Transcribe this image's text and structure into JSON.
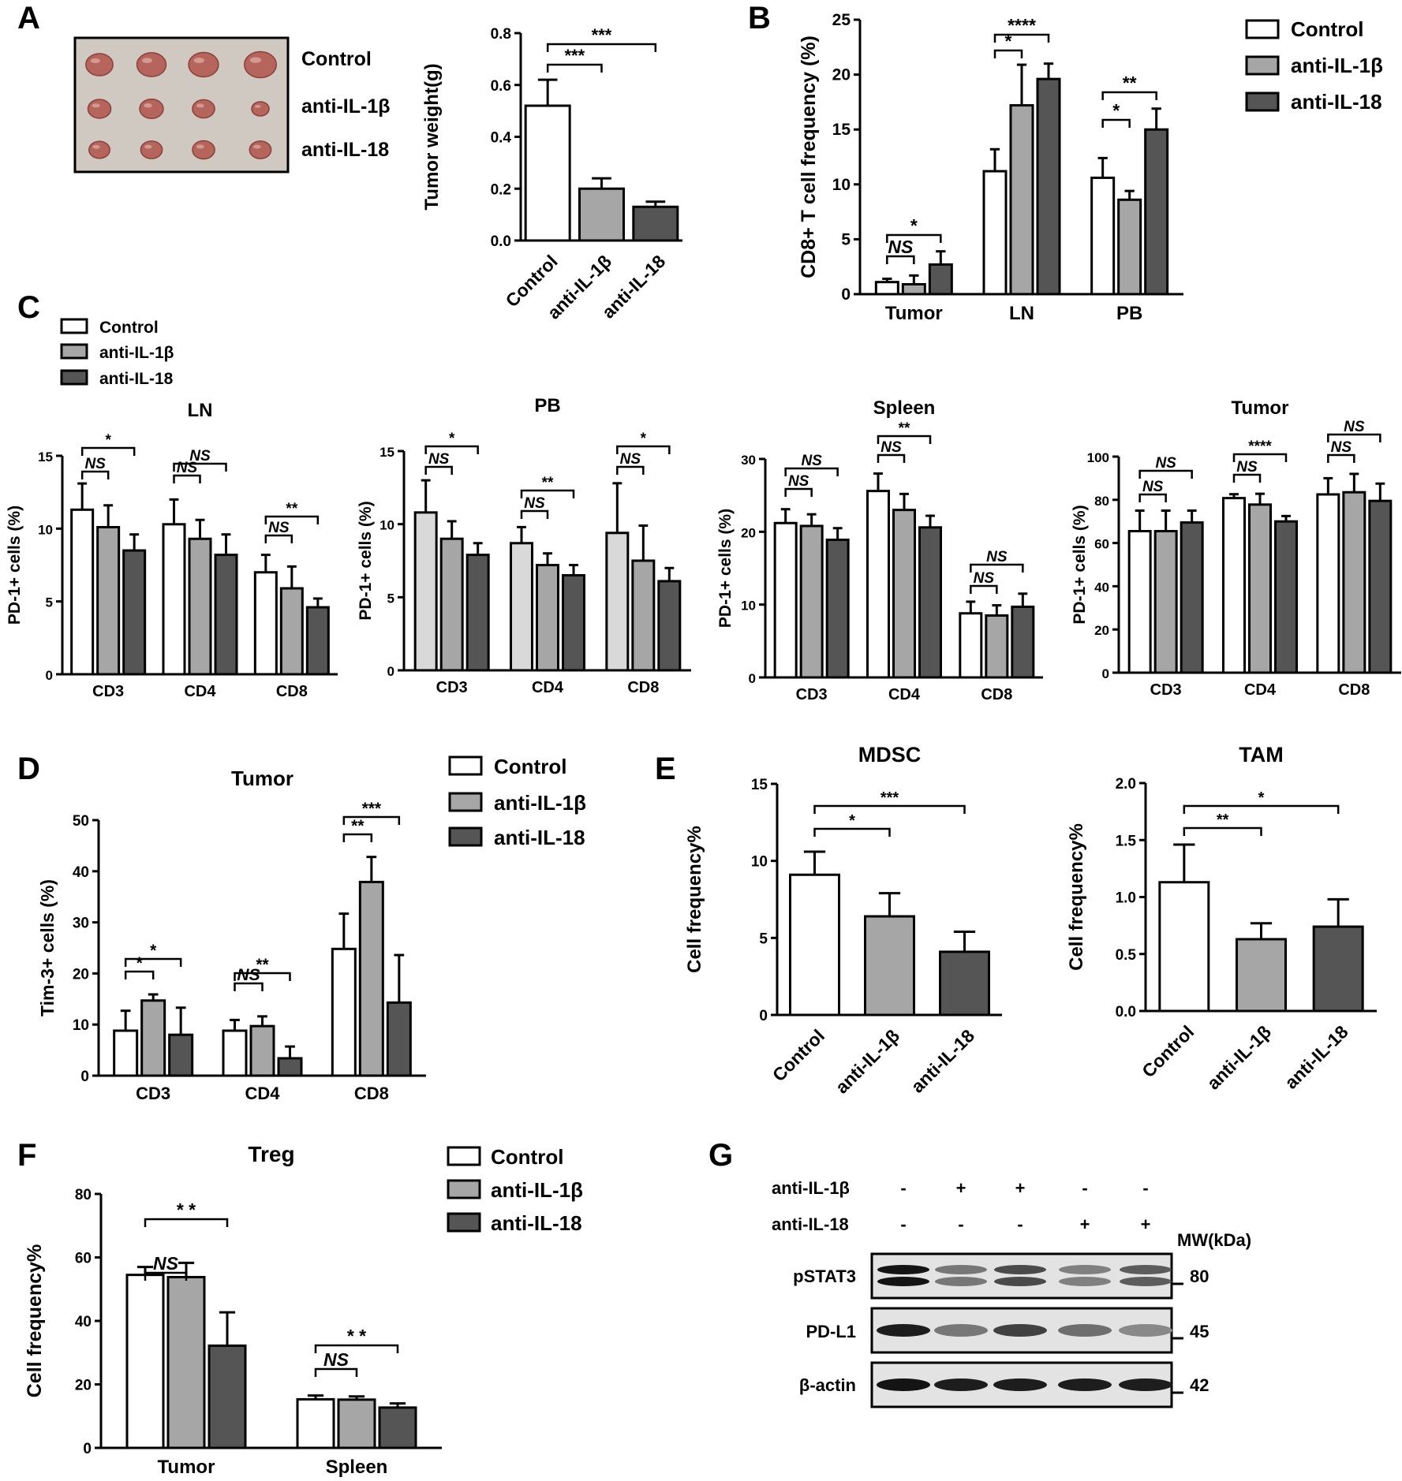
{
  "colors": {
    "control": "#ffffff",
    "anti_il1b": "#a6a6a6",
    "anti_il18": "#555555",
    "pb_control": "#d9d9d9",
    "stroke": "#000000"
  },
  "panel_labels": [
    "A",
    "B",
    "C",
    "D",
    "E",
    "F",
    "G"
  ],
  "legend_labels": [
    "Control",
    "anti-IL-1β",
    "anti-IL-18"
  ],
  "tumor_photo": {
    "row_labels": [
      "Control",
      "anti-IL-1β",
      "anti-IL-18"
    ],
    "tumor_sizes": [
      [
        0.78,
        0.84,
        0.86,
        0.92
      ],
      [
        0.66,
        0.68,
        0.64,
        0.5
      ],
      [
        0.6,
        0.62,
        0.64,
        0.62
      ]
    ]
  },
  "chart_data": [
    {
      "id": "A-weight",
      "type": "bar",
      "title": "",
      "xlabel": "",
      "ylabel": "Tumor weight(g)",
      "ylim": [
        0,
        0.8
      ],
      "yticks": [
        "0.0",
        "0.2",
        "0.4",
        "0.6",
        "0.8"
      ],
      "categories": [
        "Control",
        "anti-IL-1β",
        "anti-IL-18"
      ],
      "values": [
        0.52,
        0.2,
        0.13
      ],
      "errors": [
        0.1,
        0.04,
        0.02
      ],
      "annotations": [
        {
          "text": "***",
          "from": 0,
          "to": 1
        },
        {
          "text": "***",
          "from": 0,
          "to": 2
        }
      ]
    },
    {
      "id": "B-cd8",
      "type": "bar",
      "title": "",
      "ylabel": "CD8+ T cell frequency (%)",
      "ylim": [
        0,
        25
      ],
      "yticks": [
        "0",
        "5",
        "10",
        "15",
        "20",
        "25"
      ],
      "groups": [
        "Tumor",
        "LN",
        "PB"
      ],
      "series": [
        {
          "name": "Control",
          "values": [
            1.1,
            11.2,
            10.6
          ],
          "errors": [
            0.3,
            2.0,
            1.8
          ]
        },
        {
          "name": "anti-IL-1β",
          "values": [
            0.9,
            17.2,
            8.6
          ],
          "errors": [
            0.8,
            3.7,
            0.8
          ]
        },
        {
          "name": "anti-IL-18",
          "values": [
            2.7,
            19.6,
            15.0
          ],
          "errors": [
            1.2,
            1.4,
            1.9
          ]
        }
      ],
      "annotations": [
        {
          "group": 0,
          "text": "NS",
          "from": 0,
          "to": 1
        },
        {
          "group": 0,
          "text": "*",
          "from": 0,
          "to": 2
        },
        {
          "group": 1,
          "text": "*",
          "from": 0,
          "to": 1
        },
        {
          "group": 1,
          "text": "****",
          "from": 0,
          "to": 2
        },
        {
          "group": 2,
          "text": "*",
          "from": 0,
          "to": 1
        },
        {
          "group": 2,
          "text": "**",
          "from": 0,
          "to": 2
        }
      ]
    },
    {
      "id": "C-LN",
      "type": "bar",
      "title": "LN",
      "ylabel": "PD-1+ cells (%)",
      "ylim": [
        0,
        15
      ],
      "yticks": [
        "0",
        "5",
        "10",
        "15"
      ],
      "groups": [
        "CD3",
        "CD4",
        "CD8"
      ],
      "series": [
        {
          "name": "Control",
          "values": [
            11.3,
            10.3,
            7.0
          ],
          "errors": [
            1.8,
            1.7,
            1.2
          ]
        },
        {
          "name": "anti-IL-1β",
          "values": [
            10.1,
            9.3,
            5.9
          ],
          "errors": [
            1.5,
            1.3,
            1.5
          ]
        },
        {
          "name": "anti-IL-18",
          "values": [
            8.5,
            8.2,
            4.6
          ],
          "errors": [
            1.1,
            1.4,
            0.6
          ]
        }
      ],
      "annotations": [
        {
          "group": 0,
          "text": "NS",
          "from": 0,
          "to": 1
        },
        {
          "group": 0,
          "text": "*",
          "from": 0,
          "to": 2
        },
        {
          "group": 1,
          "text": "NS",
          "from": 0,
          "to": 1
        },
        {
          "group": 1,
          "text": "NS",
          "from": 0,
          "to": 2
        },
        {
          "group": 2,
          "text": "NS",
          "from": 0,
          "to": 1
        },
        {
          "group": 2,
          "text": "**",
          "from": 0,
          "to": 2
        }
      ]
    },
    {
      "id": "C-PB",
      "type": "bar",
      "title": "PB",
      "ylabel": "PD-1+ cells (%)",
      "ylim": [
        0,
        15
      ],
      "yticks": [
        "0",
        "5",
        "10",
        "15"
      ],
      "groups": [
        "CD3",
        "CD4",
        "CD8"
      ],
      "series": [
        {
          "name": "Control",
          "values": [
            10.8,
            8.7,
            9.4
          ],
          "errors": [
            2.2,
            1.1,
            3.4
          ]
        },
        {
          "name": "anti-IL-1β",
          "values": [
            9.0,
            7.2,
            7.5
          ],
          "errors": [
            1.2,
            0.8,
            2.4
          ]
        },
        {
          "name": "anti-IL-18",
          "values": [
            7.9,
            6.5,
            6.1
          ],
          "errors": [
            0.8,
            0.7,
            0.9
          ]
        }
      ],
      "annotations": [
        {
          "group": 0,
          "text": "NS",
          "from": 0,
          "to": 1
        },
        {
          "group": 0,
          "text": "*",
          "from": 0,
          "to": 2
        },
        {
          "group": 1,
          "text": "NS",
          "from": 0,
          "to": 1
        },
        {
          "group": 1,
          "text": "**",
          "from": 0,
          "to": 2
        },
        {
          "group": 2,
          "text": "NS",
          "from": 0,
          "to": 1
        },
        {
          "group": 2,
          "text": "*",
          "from": 0,
          "to": 2
        }
      ]
    },
    {
      "id": "C-Spleen",
      "type": "bar",
      "title": "Spleen",
      "ylabel": "PD-1+ cells (%)",
      "ylim": [
        0,
        30
      ],
      "yticks": [
        "0",
        "10",
        "20",
        "30"
      ],
      "groups": [
        "CD3",
        "CD4",
        "CD8"
      ],
      "series": [
        {
          "name": "Control",
          "values": [
            21.2,
            25.6,
            8.8
          ],
          "errors": [
            1.9,
            2.4,
            1.6
          ]
        },
        {
          "name": "anti-IL-1β",
          "values": [
            20.8,
            23.0,
            8.5
          ],
          "errors": [
            1.6,
            2.2,
            1.4
          ]
        },
        {
          "name": "anti-IL-18",
          "values": [
            18.9,
            20.6,
            9.7
          ],
          "errors": [
            1.6,
            1.6,
            1.8
          ]
        }
      ],
      "annotations": [
        {
          "group": 0,
          "text": "NS",
          "from": 0,
          "to": 1
        },
        {
          "group": 0,
          "text": "NS",
          "from": 0,
          "to": 2
        },
        {
          "group": 1,
          "text": "NS",
          "from": 0,
          "to": 1
        },
        {
          "group": 1,
          "text": "**",
          "from": 0,
          "to": 2
        },
        {
          "group": 2,
          "text": "NS",
          "from": 0,
          "to": 1
        },
        {
          "group": 2,
          "text": "NS",
          "from": 0,
          "to": 2
        }
      ]
    },
    {
      "id": "C-Tumor",
      "type": "bar",
      "title": "Tumor",
      "ylabel": "PD-1+ cells (%)",
      "ylim": [
        0,
        100
      ],
      "yticks": [
        "0",
        "20",
        "40",
        "60",
        "80",
        "100"
      ],
      "groups": [
        "CD3",
        "CD4",
        "CD8"
      ],
      "series": [
        {
          "name": "Control",
          "values": [
            65.5,
            80.8,
            82.5
          ],
          "errors": [
            9.5,
            1.8,
            7.5
          ]
        },
        {
          "name": "anti-IL-1β",
          "values": [
            65.5,
            77.8,
            83.5
          ],
          "errors": [
            9.5,
            5.0,
            8.5
          ]
        },
        {
          "name": "anti-IL-18",
          "values": [
            69.5,
            70.0,
            79.5
          ],
          "errors": [
            5.5,
            2.5,
            8.0
          ]
        }
      ],
      "annotations": [
        {
          "group": 0,
          "text": "NS",
          "from": 0,
          "to": 1
        },
        {
          "group": 0,
          "text": "NS",
          "from": 0,
          "to": 2
        },
        {
          "group": 1,
          "text": "NS",
          "from": 0,
          "to": 1
        },
        {
          "group": 1,
          "text": "****",
          "from": 0,
          "to": 2
        },
        {
          "group": 2,
          "text": "NS",
          "from": 0,
          "to": 1
        },
        {
          "group": 2,
          "text": "NS",
          "from": 0,
          "to": 2
        }
      ]
    },
    {
      "id": "D-tim3",
      "type": "bar",
      "title": "Tumor",
      "ylabel": "Tim-3+ cells (%)",
      "ylim": [
        0,
        50
      ],
      "yticks": [
        "0",
        "10",
        "20",
        "30",
        "40",
        "50"
      ],
      "groups": [
        "CD3",
        "CD4",
        "CD8"
      ],
      "series": [
        {
          "name": "Control",
          "values": [
            8.8,
            8.8,
            24.8
          ],
          "errors": [
            3.9,
            2.1,
            6.9
          ]
        },
        {
          "name": "anti-IL-1β",
          "values": [
            14.7,
            9.7,
            37.9
          ],
          "errors": [
            1.2,
            1.9,
            4.9
          ]
        },
        {
          "name": "anti-IL-18",
          "values": [
            8.0,
            3.4,
            14.3
          ],
          "errors": [
            5.3,
            2.3,
            9.3
          ]
        }
      ],
      "annotations": [
        {
          "group": 0,
          "text": "*",
          "from": 0,
          "to": 1
        },
        {
          "group": 0,
          "text": "*",
          "from": 0,
          "to": 2
        },
        {
          "group": 1,
          "text": "NS",
          "from": 0,
          "to": 1
        },
        {
          "group": 1,
          "text": "**",
          "from": 0,
          "to": 2
        },
        {
          "group": 2,
          "text": "**",
          "from": 0,
          "to": 1
        },
        {
          "group": 2,
          "text": "***",
          "from": 0,
          "to": 2
        }
      ]
    },
    {
      "id": "E-MDSC",
      "type": "bar",
      "title": "MDSC",
      "ylabel": "Cell  frequency%",
      "ylim": [
        0,
        15
      ],
      "yticks": [
        "0",
        "5",
        "10",
        "15"
      ],
      "categories": [
        "Control",
        "anti-IL-1β",
        "anti-IL-18"
      ],
      "values": [
        9.1,
        6.4,
        4.1
      ],
      "errors": [
        1.5,
        1.5,
        1.3
      ],
      "annotations": [
        {
          "text": "*",
          "from": 0,
          "to": 1
        },
        {
          "text": "***",
          "from": 0,
          "to": 2
        }
      ]
    },
    {
      "id": "E-TAM",
      "type": "bar",
      "title": "TAM",
      "ylabel": "Cell  frequency%",
      "ylim": [
        0,
        2.0
      ],
      "yticks": [
        "0.0",
        "0.5",
        "1.0",
        "1.5",
        "2.0"
      ],
      "categories": [
        "Control",
        "anti-IL-1β",
        "anti-IL-18"
      ],
      "values": [
        1.13,
        0.63,
        0.74
      ],
      "errors": [
        0.33,
        0.14,
        0.24
      ],
      "annotations": [
        {
          "text": "**",
          "from": 0,
          "to": 1
        },
        {
          "text": "*",
          "from": 0,
          "to": 2
        }
      ]
    },
    {
      "id": "F-Treg",
      "type": "bar",
      "title": "Treg",
      "ylabel": "Cell frequency%",
      "ylim": [
        0,
        80
      ],
      "yticks": [
        "0",
        "20",
        "40",
        "60",
        "80"
      ],
      "groups": [
        "Tumor",
        "Spleen"
      ],
      "series": [
        {
          "name": "Control",
          "values": [
            54.5,
            15.3
          ],
          "errors": [
            2.5,
            1.2
          ]
        },
        {
          "name": "anti-IL-1β",
          "values": [
            53.8,
            15.2
          ],
          "errors": [
            4.5,
            1.0
          ]
        },
        {
          "name": "anti-IL-18",
          "values": [
            32.2,
            12.7
          ],
          "errors": [
            10.5,
            1.3
          ]
        }
      ],
      "annotations": [
        {
          "group": 0,
          "text": "NS",
          "from": 0,
          "to": 1
        },
        {
          "group": 0,
          "text": "* *",
          "from": 0,
          "to": 2
        },
        {
          "group": 1,
          "text": "NS",
          "from": 0,
          "to": 1
        },
        {
          "group": 1,
          "text": "* *",
          "from": 0,
          "to": 2
        }
      ]
    }
  ],
  "western_blot": {
    "treatment_rows": [
      {
        "label": "anti-IL-1β",
        "signs": [
          "-",
          "+",
          "+",
          "-",
          "-"
        ]
      },
      {
        "label": "anti-IL-18",
        "signs": [
          "-",
          "-",
          "-",
          "+",
          "+"
        ]
      }
    ],
    "mw_header": "MW(kDa)",
    "blots": [
      {
        "label": "pSTAT3",
        "mw": "80",
        "intensity": [
          1.0,
          0.45,
          0.7,
          0.4,
          0.6
        ]
      },
      {
        "label": "PD-L1",
        "mw": "45",
        "intensity": [
          0.95,
          0.45,
          0.75,
          0.5,
          0.35
        ]
      },
      {
        "label": "β-actin",
        "mw": "42",
        "intensity": [
          1.0,
          0.95,
          0.95,
          0.95,
          0.95
        ]
      }
    ]
  }
}
